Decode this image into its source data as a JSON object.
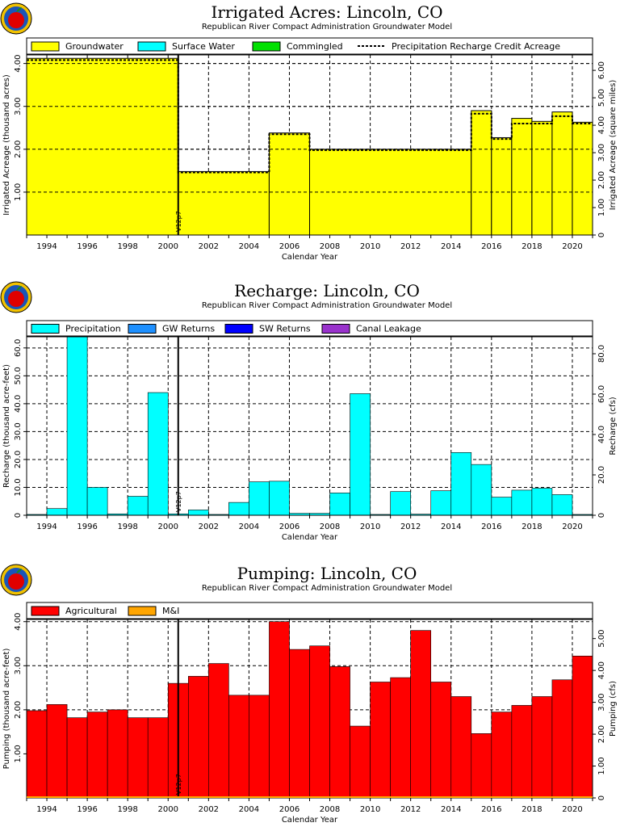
{
  "colors": {
    "groundwater": "#ffff00",
    "surface_water": "#00ffff",
    "commingled": "#00e000",
    "precipitation": "#00ffff",
    "gw_returns": "#1e90ff",
    "sw_returns": "#0000ff",
    "canal_leakage": "#9932cc",
    "agricultural": "#ff0000",
    "mi": "#ffa500"
  },
  "icons": [
    "apple-logo-icon",
    "apple-logo-icon",
    "apple-logo-icon"
  ],
  "chart_data": [
    {
      "type": "bar",
      "title": "Irrigated Acres: Lincoln, CO",
      "subtitle": "Republican River Compact Administration Groundwater Model",
      "xlabel": "Calendar Year",
      "ylabel": "Irrigated Acreage (thousand acres)",
      "y2label": "Irrigated Acreage (square miles)",
      "xlim": [
        1993,
        2021
      ],
      "ylim": [
        0,
        4.2
      ],
      "y2lim": [
        0,
        6.5625
      ],
      "yticks": [
        "1.00",
        "2.00",
        "3.00",
        "4.00"
      ],
      "yticks_values": [
        1,
        2,
        3,
        4
      ],
      "y2ticks": [
        "0",
        "1.00",
        "2.00",
        "3.00",
        "4.00",
        "5.00",
        "6.00"
      ],
      "y2ticks_values": [
        0,
        1,
        2,
        3,
        4,
        5,
        6
      ],
      "xticks": [
        "1994",
        "1996",
        "1998",
        "2000",
        "2002",
        "2004",
        "2006",
        "2008",
        "2010",
        "2012",
        "2014",
        "2016",
        "2018",
        "2020"
      ],
      "marker_label": "V12p7",
      "marker_x": 2000.5,
      "grid": true,
      "legend": [
        "Groundwater",
        "Surface Water",
        "Commingled",
        "Precipitation Recharge Credit Acreage"
      ],
      "segments": [
        {
          "x0": 1993,
          "x1": 2000.5,
          "value": 4.12
        },
        {
          "x0": 2000.5,
          "x1": 2005,
          "value": 1.48
        },
        {
          "x0": 2005,
          "x1": 2007,
          "value": 2.38
        },
        {
          "x0": 2007,
          "x1": 2015,
          "value": 2.0
        },
        {
          "x0": 2015,
          "x1": 2016,
          "value": 2.9
        },
        {
          "x0": 2016,
          "x1": 2017,
          "value": 2.27
        },
        {
          "x0": 2017,
          "x1": 2018,
          "value": 2.72
        },
        {
          "x0": 2018,
          "x1": 2019,
          "value": 2.65
        },
        {
          "x0": 2019,
          "x1": 2020,
          "value": 2.87
        },
        {
          "x0": 2020,
          "x1": 2021,
          "value": 2.63
        }
      ],
      "credit_line": [
        {
          "x0": 1993,
          "x1": 2000.5,
          "value": 4.08
        },
        {
          "x0": 2000.5,
          "x1": 2005,
          "value": 1.46
        },
        {
          "x0": 2005,
          "x1": 2007,
          "value": 2.35
        },
        {
          "x0": 2007,
          "x1": 2015,
          "value": 1.98
        },
        {
          "x0": 2015,
          "x1": 2016,
          "value": 2.83
        },
        {
          "x0": 2016,
          "x1": 2017,
          "value": 2.24
        },
        {
          "x0": 2017,
          "x1": 2018,
          "value": 2.6
        },
        {
          "x0": 2018,
          "x1": 2019,
          "value": 2.6
        },
        {
          "x0": 2019,
          "x1": 2020,
          "value": 2.77
        },
        {
          "x0": 2020,
          "x1": 2021,
          "value": 2.6
        }
      ]
    },
    {
      "type": "bar",
      "title": "Recharge: Lincoln, CO",
      "subtitle": "Republican River Compact Administration Groundwater Model",
      "xlabel": "Calendar Year",
      "ylabel": "Recharge (thousand acre-feet)",
      "y2label": "Recharge (cfs)",
      "xlim": [
        1993,
        2021
      ],
      "ylim": [
        0,
        64
      ],
      "y2lim": [
        0,
        88.4
      ],
      "yticks": [
        "0",
        "10.0",
        "20.0",
        "30.0",
        "40.0",
        "50.0",
        "60.0"
      ],
      "yticks_values": [
        0,
        10,
        20,
        30,
        40,
        50,
        60
      ],
      "y2ticks": [
        "0",
        "20.0",
        "40.0",
        "60.0",
        "80.0"
      ],
      "y2ticks_values": [
        0,
        20,
        40,
        60,
        80
      ],
      "xticks": [
        "1994",
        "1996",
        "1998",
        "2000",
        "2002",
        "2004",
        "2006",
        "2008",
        "2010",
        "2012",
        "2014",
        "2016",
        "2018",
        "2020"
      ],
      "marker_label": "V12p7",
      "marker_x": 2000.5,
      "grid": true,
      "legend": [
        "Precipitation",
        "GW Returns",
        "SW Returns",
        "Canal Leakage"
      ],
      "years": [
        1993,
        1994,
        1995,
        1996,
        1997,
        1998,
        1999,
        2000,
        2001,
        2002,
        2003,
        2004,
        2005,
        2006,
        2007,
        2008,
        2009,
        2010,
        2011,
        2012,
        2013,
        2014,
        2015,
        2016,
        2017,
        2018,
        2019,
        2020
      ],
      "values": [
        0.3,
        2.4,
        64,
        10,
        0.5,
        6.8,
        44,
        0.5,
        1.9,
        0.3,
        4.6,
        12,
        12.2,
        0.7,
        0.7,
        8,
        43.6,
        0.3,
        8.5,
        0.4,
        8.8,
        22.5,
        18.2,
        6.5,
        9,
        9.7,
        7.4,
        0.3
      ]
    },
    {
      "type": "bar",
      "title": "Pumping: Lincoln, CO",
      "subtitle": "Republican River Compact Administration Groundwater Model",
      "xlabel": "Calendar Year",
      "ylabel": "Pumping (thousand acre-feet)",
      "y2label": "Pumping (cfs)",
      "xlim": [
        1993,
        2021
      ],
      "ylim": [
        0,
        4.05
      ],
      "y2lim": [
        0,
        5.6
      ],
      "yticks": [
        "1.00",
        "2.00",
        "3.00",
        "4.00"
      ],
      "yticks_values": [
        1,
        2,
        3,
        4
      ],
      "y2ticks": [
        "0",
        "1.00",
        "2.00",
        "3.00",
        "4.00",
        "5.00"
      ],
      "y2ticks_values": [
        0,
        1,
        2,
        3,
        4,
        5
      ],
      "xticks": [
        "1994",
        "1996",
        "1998",
        "2000",
        "2002",
        "2004",
        "2006",
        "2008",
        "2010",
        "2012",
        "2014",
        "2016",
        "2018",
        "2020"
      ],
      "marker_label": "V12p7",
      "marker_x": 2000.5,
      "grid": true,
      "legend": [
        "Agricultural",
        "M&I"
      ],
      "years": [
        1993,
        1994,
        1995,
        1996,
        1997,
        1998,
        1999,
        2000,
        2001,
        2002,
        2003,
        2004,
        2005,
        2006,
        2007,
        2008,
        2009,
        2010,
        2011,
        2012,
        2013,
        2014,
        2015,
        2016,
        2017,
        2018,
        2019,
        2020
      ],
      "values": [
        1.98,
        2.12,
        1.82,
        1.95,
        2.0,
        1.82,
        1.82,
        2.6,
        2.76,
        3.05,
        2.33,
        2.33,
        4.0,
        3.37,
        3.45,
        2.98,
        1.63,
        2.63,
        2.73,
        3.8,
        2.63,
        2.3,
        1.46,
        1.95,
        2.1,
        2.3,
        2.68,
        3.22
      ]
    }
  ]
}
